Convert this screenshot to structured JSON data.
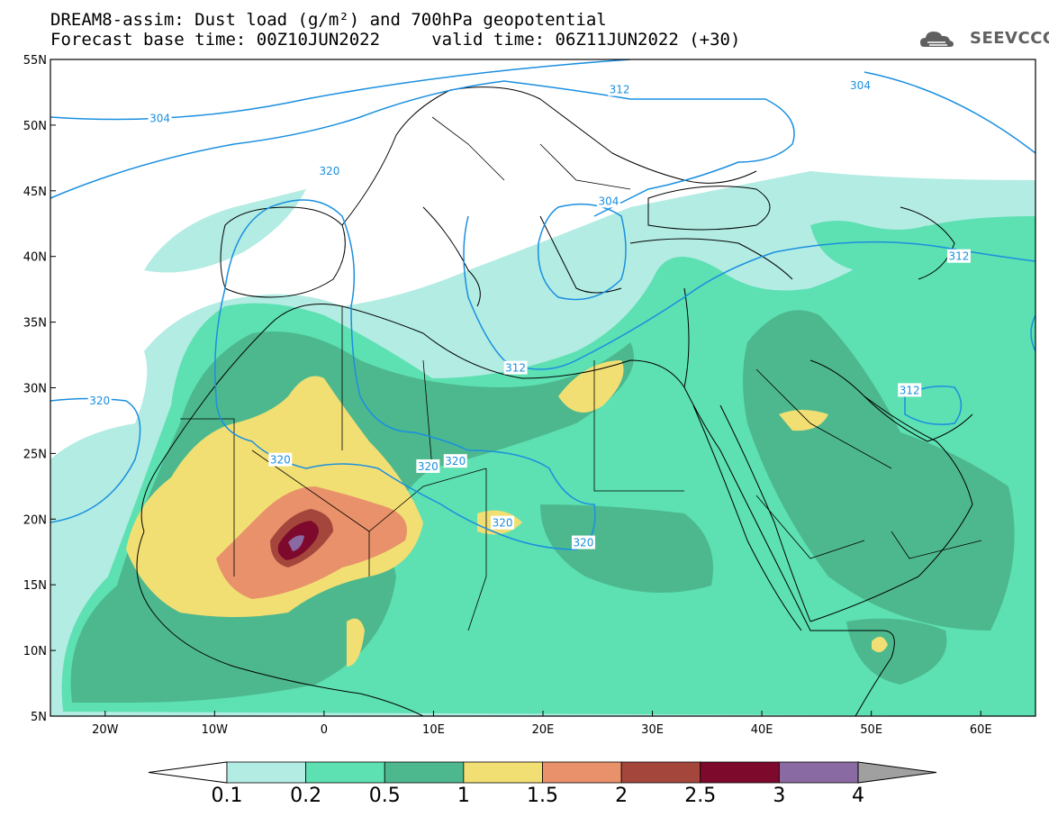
{
  "header": {
    "title_line1": "DREAM8-assim: Dust load (g/m²) and 700hPa geopotential",
    "title_line2": "Forecast base time: 00Z10JUN2022     valid time: 06Z11JUN2022 (+30)",
    "logo_text": "SEEVCCC"
  },
  "map": {
    "lon_range": [
      -25,
      65
    ],
    "lat_range": [
      5,
      55
    ],
    "lon_ticks": [
      {
        "value": -20,
        "label": "20W"
      },
      {
        "value": -10,
        "label": "10W"
      },
      {
        "value": 0,
        "label": "0"
      },
      {
        "value": 10,
        "label": "10E"
      },
      {
        "value": 20,
        "label": "20E"
      },
      {
        "value": 30,
        "label": "30E"
      },
      {
        "value": 40,
        "label": "40E"
      },
      {
        "value": 50,
        "label": "50E"
      },
      {
        "value": 60,
        "label": "60E"
      }
    ],
    "lat_ticks": [
      {
        "value": 55,
        "label": "55N"
      },
      {
        "value": 50,
        "label": "50N"
      },
      {
        "value": 45,
        "label": "45N"
      },
      {
        "value": 40,
        "label": "40N"
      },
      {
        "value": 35,
        "label": "35N"
      },
      {
        "value": 30,
        "label": "30N"
      },
      {
        "value": 25,
        "label": "25N"
      },
      {
        "value": 20,
        "label": "20N"
      },
      {
        "value": 15,
        "label": "15N"
      },
      {
        "value": 10,
        "label": "10N"
      },
      {
        "value": 5,
        "label": "5N"
      }
    ],
    "contour_labels": [
      {
        "text": "304",
        "lon": -15,
        "lat": 50.5
      },
      {
        "text": "304",
        "lon": 26,
        "lat": 44.2
      },
      {
        "text": "304",
        "lon": 49,
        "lat": 53
      },
      {
        "text": "312",
        "lon": 27,
        "lat": 52.7
      },
      {
        "text": "312",
        "lon": 58,
        "lat": 40
      },
      {
        "text": "312",
        "lon": 53.5,
        "lat": 29.8
      },
      {
        "text": "312",
        "lon": 17.5,
        "lat": 31.5
      },
      {
        "text": "320",
        "lon": -20.5,
        "lat": 29
      },
      {
        "text": "320",
        "lon": 0.5,
        "lat": 46.5
      },
      {
        "text": "320",
        "lon": -4,
        "lat": 24.5
      },
      {
        "text": "320",
        "lon": 9.5,
        "lat": 24
      },
      {
        "text": "320",
        "lon": 12,
        "lat": 24.4
      },
      {
        "text": "320",
        "lon": 16.3,
        "lat": 19.7
      },
      {
        "text": "320",
        "lon": 23.7,
        "lat": 18.2
      }
    ]
  },
  "colorbar": {
    "levels": [
      "0.1",
      "0.2",
      "0.5",
      "1",
      "1.5",
      "2",
      "2.5",
      "3",
      "4"
    ],
    "colors": [
      "#ffffff",
      "#b2ece3",
      "#5de0b2",
      "#4db88e",
      "#f2df73",
      "#e8916a",
      "#a5463c",
      "#7d0a2c",
      "#8a6aa3",
      "#a0a0a0"
    ]
  },
  "colors": {
    "land_outline": "#000000",
    "contour": "#1a8fe0",
    "bin1": "#b2ece3",
    "bin2": "#5de0b2",
    "bin3": "#4db88e",
    "bin4": "#f2df73",
    "bin5": "#e8916a",
    "bin6": "#a5463c",
    "bin7": "#7d0a2c",
    "bin8": "#8a6aa3"
  }
}
